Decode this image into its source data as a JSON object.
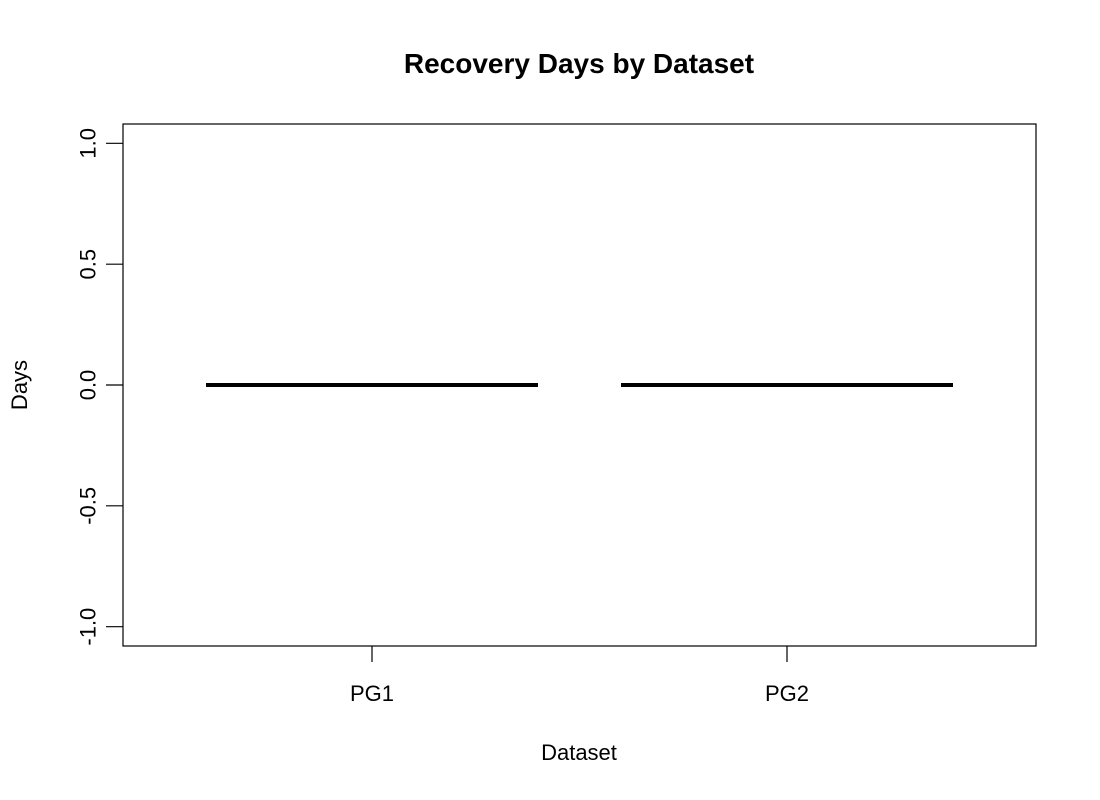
{
  "chart_data": {
    "type": "box",
    "title": "Recovery Days by Dataset",
    "xlabel": "Dataset",
    "ylabel": "Days",
    "categories": [
      "PG1",
      "PG2"
    ],
    "values": [
      0,
      0
    ],
    "ylim": [
      -1.08,
      1.08
    ],
    "yticks": [
      -1.0,
      -0.5,
      0.0,
      0.5,
      1.0
    ],
    "ytick_labels": [
      "-1.0",
      "-0.5",
      "0.0",
      "0.5",
      "1.0"
    ],
    "grid": false,
    "legend": "none"
  }
}
